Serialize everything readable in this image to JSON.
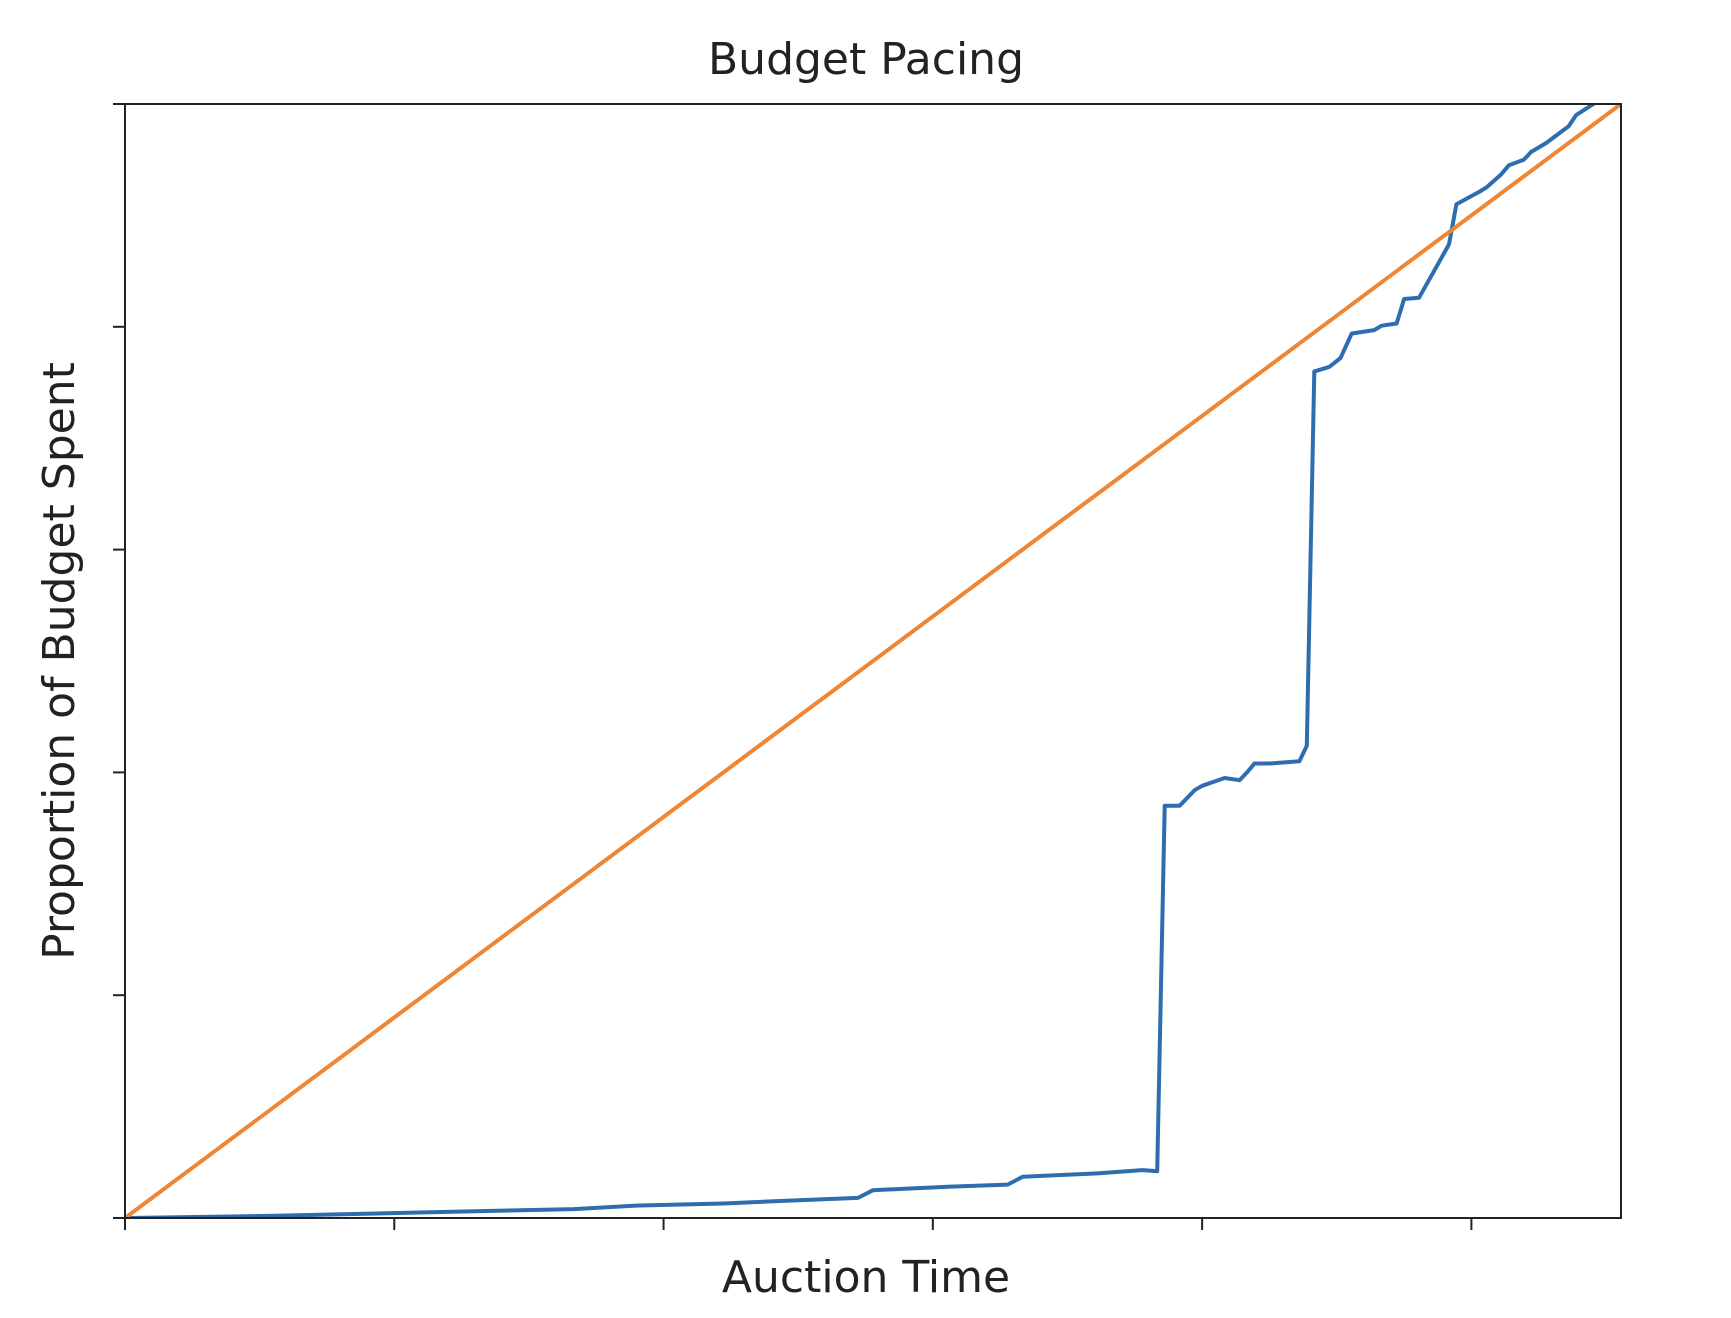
{
  "chart_data": {
    "type": "line",
    "title": "Budget Pacing",
    "xlabel": "Auction Time",
    "ylabel": "Proportion of Budget Spent",
    "xlim": [
      0,
      1
    ],
    "ylim": [
      0,
      1
    ],
    "x_ticks": [
      0,
      0.18,
      0.36,
      0.54,
      0.72,
      0.9
    ],
    "y_ticks": [
      0,
      0.2,
      0.4,
      0.6,
      0.8,
      1.0
    ],
    "tick_labels_shown": false,
    "grid": false,
    "legend": "none",
    "series": [
      {
        "color": "#2f6db1",
        "x": [
          0,
          0.1,
          0.2,
          0.3,
          0.34,
          0.4,
          0.45,
          0.49,
          0.5,
          0.55,
          0.59,
          0.6,
          0.65,
          0.68,
          0.69,
          0.695,
          0.705,
          0.715,
          0.72,
          0.735,
          0.745,
          0.75,
          0.755,
          0.765,
          0.785,
          0.79,
          0.795,
          0.805,
          0.8125,
          0.82,
          0.835,
          0.84,
          0.85,
          0.855,
          0.865,
          0.875,
          0.885,
          0.89,
          0.905,
          0.91,
          0.92,
          0.925,
          0.935,
          0.94,
          0.95,
          0.955,
          0.965,
          0.97,
          0.985,
          1.0
        ],
        "y": [
          0,
          0.002,
          0.005,
          0.008,
          0.011,
          0.013,
          0.016,
          0.018,
          0.025,
          0.028,
          0.03,
          0.037,
          0.04,
          0.043,
          0.042,
          0.37,
          0.37,
          0.384,
          0.388,
          0.395,
          0.393,
          0.4,
          0.408,
          0.408,
          0.41,
          0.424,
          0.76,
          0.764,
          0.772,
          0.794,
          0.797,
          0.801,
          0.803,
          0.825,
          0.826,
          0.85,
          0.874,
          0.91,
          0.921,
          0.925,
          0.937,
          0.945,
          0.95,
          0.957,
          0.965,
          0.97,
          0.98,
          0.99,
          1.003,
          1.003
        ]
      },
      {
        "color": "#ef8636",
        "x": [
          0,
          1
        ],
        "y": [
          0,
          1
        ]
      }
    ]
  }
}
